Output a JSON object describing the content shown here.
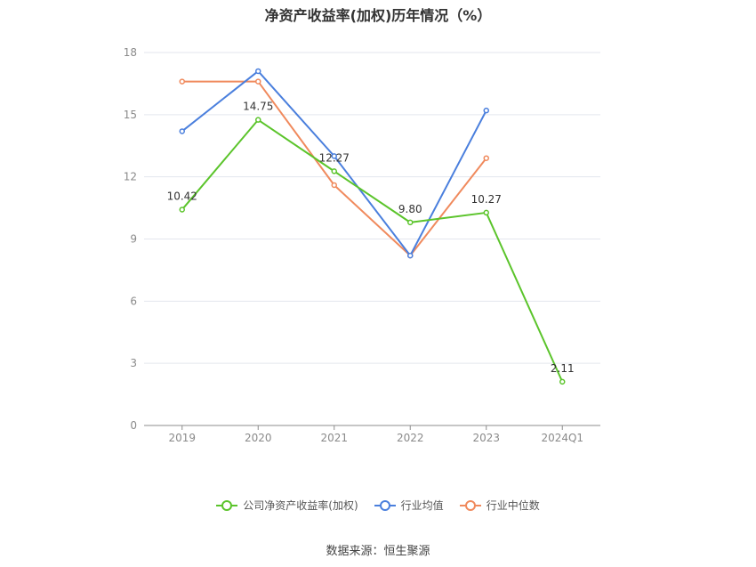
{
  "chart_data": {
    "type": "line",
    "title": "净资产收益率(加权)历年情况（%）",
    "categories": [
      "2019",
      "2020",
      "2021",
      "2022",
      "2023",
      "2024Q1"
    ],
    "ylim": [
      0,
      18
    ],
    "yticks": [
      0,
      3,
      6,
      9,
      12,
      15,
      18
    ],
    "grid": true,
    "legend_position": "bottom",
    "series": [
      {
        "name": "公司净资产收益率(加权)",
        "color": "#5bc42b",
        "values": [
          10.42,
          14.75,
          12.27,
          9.8,
          10.27,
          2.11
        ],
        "labels": [
          "10.42",
          "14.75",
          "12.27",
          "9.80",
          "10.27",
          "2.11"
        ]
      },
      {
        "name": "行业均值",
        "color": "#4a7fdd",
        "values": [
          14.2,
          17.1,
          13.0,
          8.2,
          15.2,
          null
        ]
      },
      {
        "name": "行业中位数",
        "color": "#f08a5d",
        "values": [
          16.6,
          16.6,
          11.6,
          8.2,
          12.9,
          null
        ]
      }
    ]
  },
  "source": "数据来源：恒生聚源"
}
